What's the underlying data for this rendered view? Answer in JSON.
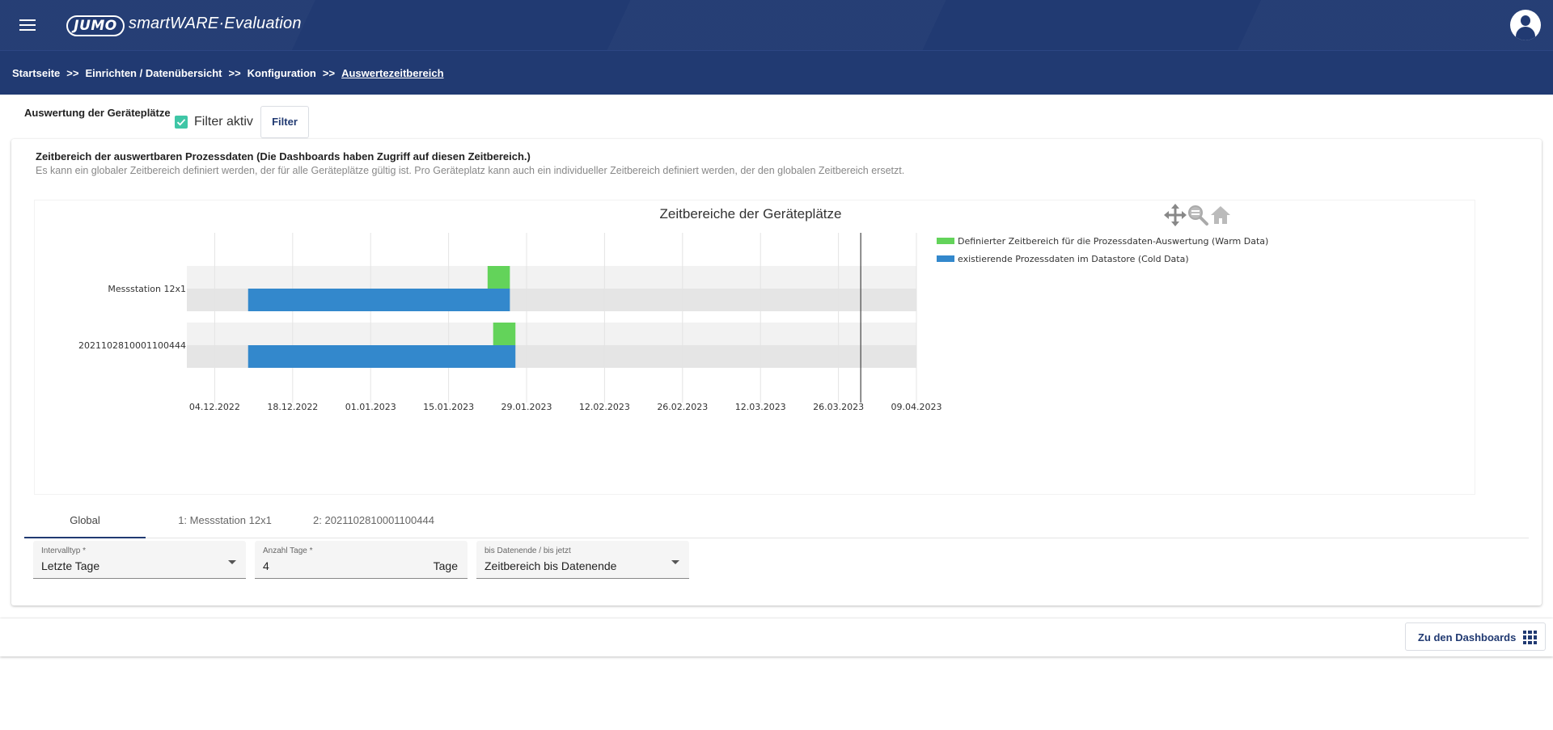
{
  "header": {
    "logo_text": "JUMO",
    "app_name": "smartWARE·Evaluation"
  },
  "breadcrumb": {
    "items": [
      "Startseite",
      "Einrichten / Datenübersicht",
      "Konfiguration",
      "Auswertezeitbereich"
    ],
    "separator": ">>"
  },
  "filter": {
    "section_title": "Auswertung der Geräteplätze",
    "checkbox_label": "Filter aktiv",
    "checkbox_checked": true,
    "button_label": "Filter"
  },
  "card": {
    "title": "Zeitbereich der auswertbaren Prozessdaten (Die Dashboards haben Zugriff auf diesen Zeitbereich.)",
    "subtitle": "Es kann ein globaler Zeitbereich definiert werden, der für alle Geräteplätze gültig ist. Pro Geräteplatz kann auch ein individueller Zeitbereich definiert werden, der den globalen Zeitbereich ersetzt."
  },
  "chart_toolbar": {
    "icons": [
      "move-icon",
      "zoom-icon",
      "home-icon"
    ]
  },
  "chart_data": {
    "type": "gantt",
    "title": "Zeitbereiche der Geräteplätze",
    "x_type": "date",
    "x_ticks": [
      "04.12.2022",
      "18.12.2022",
      "01.01.2023",
      "15.01.2023",
      "29.01.2023",
      "12.02.2023",
      "26.02.2023",
      "12.03.2023",
      "26.03.2023",
      "09.04.2023"
    ],
    "xlim": [
      "2022-11-29",
      "2023-04-09"
    ],
    "now_line": "2023-03-30",
    "grid": true,
    "legend_position": "right",
    "categories": [
      "Messstation 12x1",
      "2021102810001100444"
    ],
    "series": [
      {
        "name": "Definierter Zeitbereich für die Prozessdaten-Auswertung (Warm Data)",
        "color": "#63d35a",
        "ranges": [
          {
            "category": "Messstation 12x1",
            "start": "2023-01-22",
            "end": "2023-01-26"
          },
          {
            "category": "2021102810001100444",
            "start": "2023-01-23",
            "end": "2023-01-27"
          }
        ]
      },
      {
        "name": "existierende Prozessdaten im Datastore (Cold Data)",
        "color": "#3388cc",
        "ranges": [
          {
            "category": "Messstation 12x1",
            "start": "2022-12-10",
            "end": "2023-01-26"
          },
          {
            "category": "2021102810001100444",
            "start": "2022-12-10",
            "end": "2023-01-27"
          }
        ]
      }
    ]
  },
  "tabs": [
    {
      "label": "Global",
      "active": true
    },
    {
      "label": "1: Messstation 12x1",
      "active": false
    },
    {
      "label": "2: 2021102810001100444",
      "active": false
    }
  ],
  "fields": {
    "intervalltyp": {
      "label": "Intervalltyp *",
      "value": "Letzte Tage"
    },
    "anzahl_tage": {
      "label": "Anzahl Tage *",
      "value": "4",
      "suffix": "Tage"
    },
    "bis_datenende": {
      "label": "bis Datenende / bis jetzt",
      "value": "Zeitbereich bis Datenende"
    }
  },
  "footer": {
    "dashboards_button": "Zu den Dashboards"
  },
  "colors": {
    "brand": "#213a72",
    "accent": "#3fc6a6",
    "warm": "#63d35a",
    "cold": "#3388cc"
  }
}
